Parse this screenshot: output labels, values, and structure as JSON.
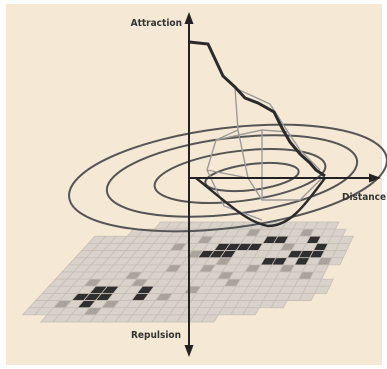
{
  "labels": {
    "attraction": "Attraction",
    "distance": "Distance",
    "repulsion": "Repulsion"
  },
  "colors": {
    "panel_bg": "#f5e8d4",
    "grid_stroke": "#c7beb4",
    "cell_light": "#d8d2cb",
    "cell_mid": "#a9a39c",
    "cell_dark": "#2f2f2f",
    "contour_stroke": "#555555",
    "curve_stroke": "#2a2a2a",
    "axis_stroke": "#222222"
  }
}
